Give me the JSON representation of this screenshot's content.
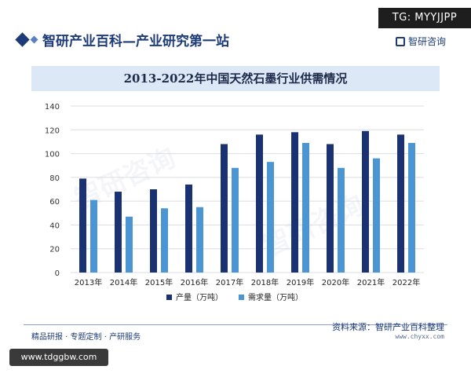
{
  "page": {
    "tag": "TG: MYYJJPP",
    "site_title": "智研产业百科—产业研究第一站",
    "brand": "智研咨询",
    "footer_left": "精品研报 · 专题定制 · 产研服务",
    "footer_source": "资料来源：智研产业百科整理",
    "footer_url": "www.chyxx.com",
    "url_badge": "www.tdggbw.com"
  },
  "colors": {
    "production": "#1b3272",
    "demand": "#4a95d2",
    "accent": "#1d3b78",
    "banner": "#dde8f6"
  },
  "chart_data": {
    "type": "bar",
    "title": "2013-2022年中国天然石墨行业供需情况",
    "categories": [
      "2013年",
      "2014年",
      "2015年",
      "2016年",
      "2017年",
      "2018年",
      "2019年",
      "2020年",
      "2021年",
      "2022年"
    ],
    "series": [
      {
        "name": "产量（万吨）",
        "values": [
          79,
          68,
          70,
          74,
          108,
          116,
          118,
          108,
          119,
          116
        ]
      },
      {
        "name": "需求量（万吨）",
        "values": [
          61,
          47,
          54,
          55,
          88,
          93,
          109,
          88,
          96,
          109
        ]
      }
    ],
    "ylim": [
      0,
      140
    ],
    "yticks": [
      0,
      20,
      40,
      60,
      80,
      100,
      120,
      140
    ],
    "grid": true,
    "legend": "bottom-center"
  }
}
